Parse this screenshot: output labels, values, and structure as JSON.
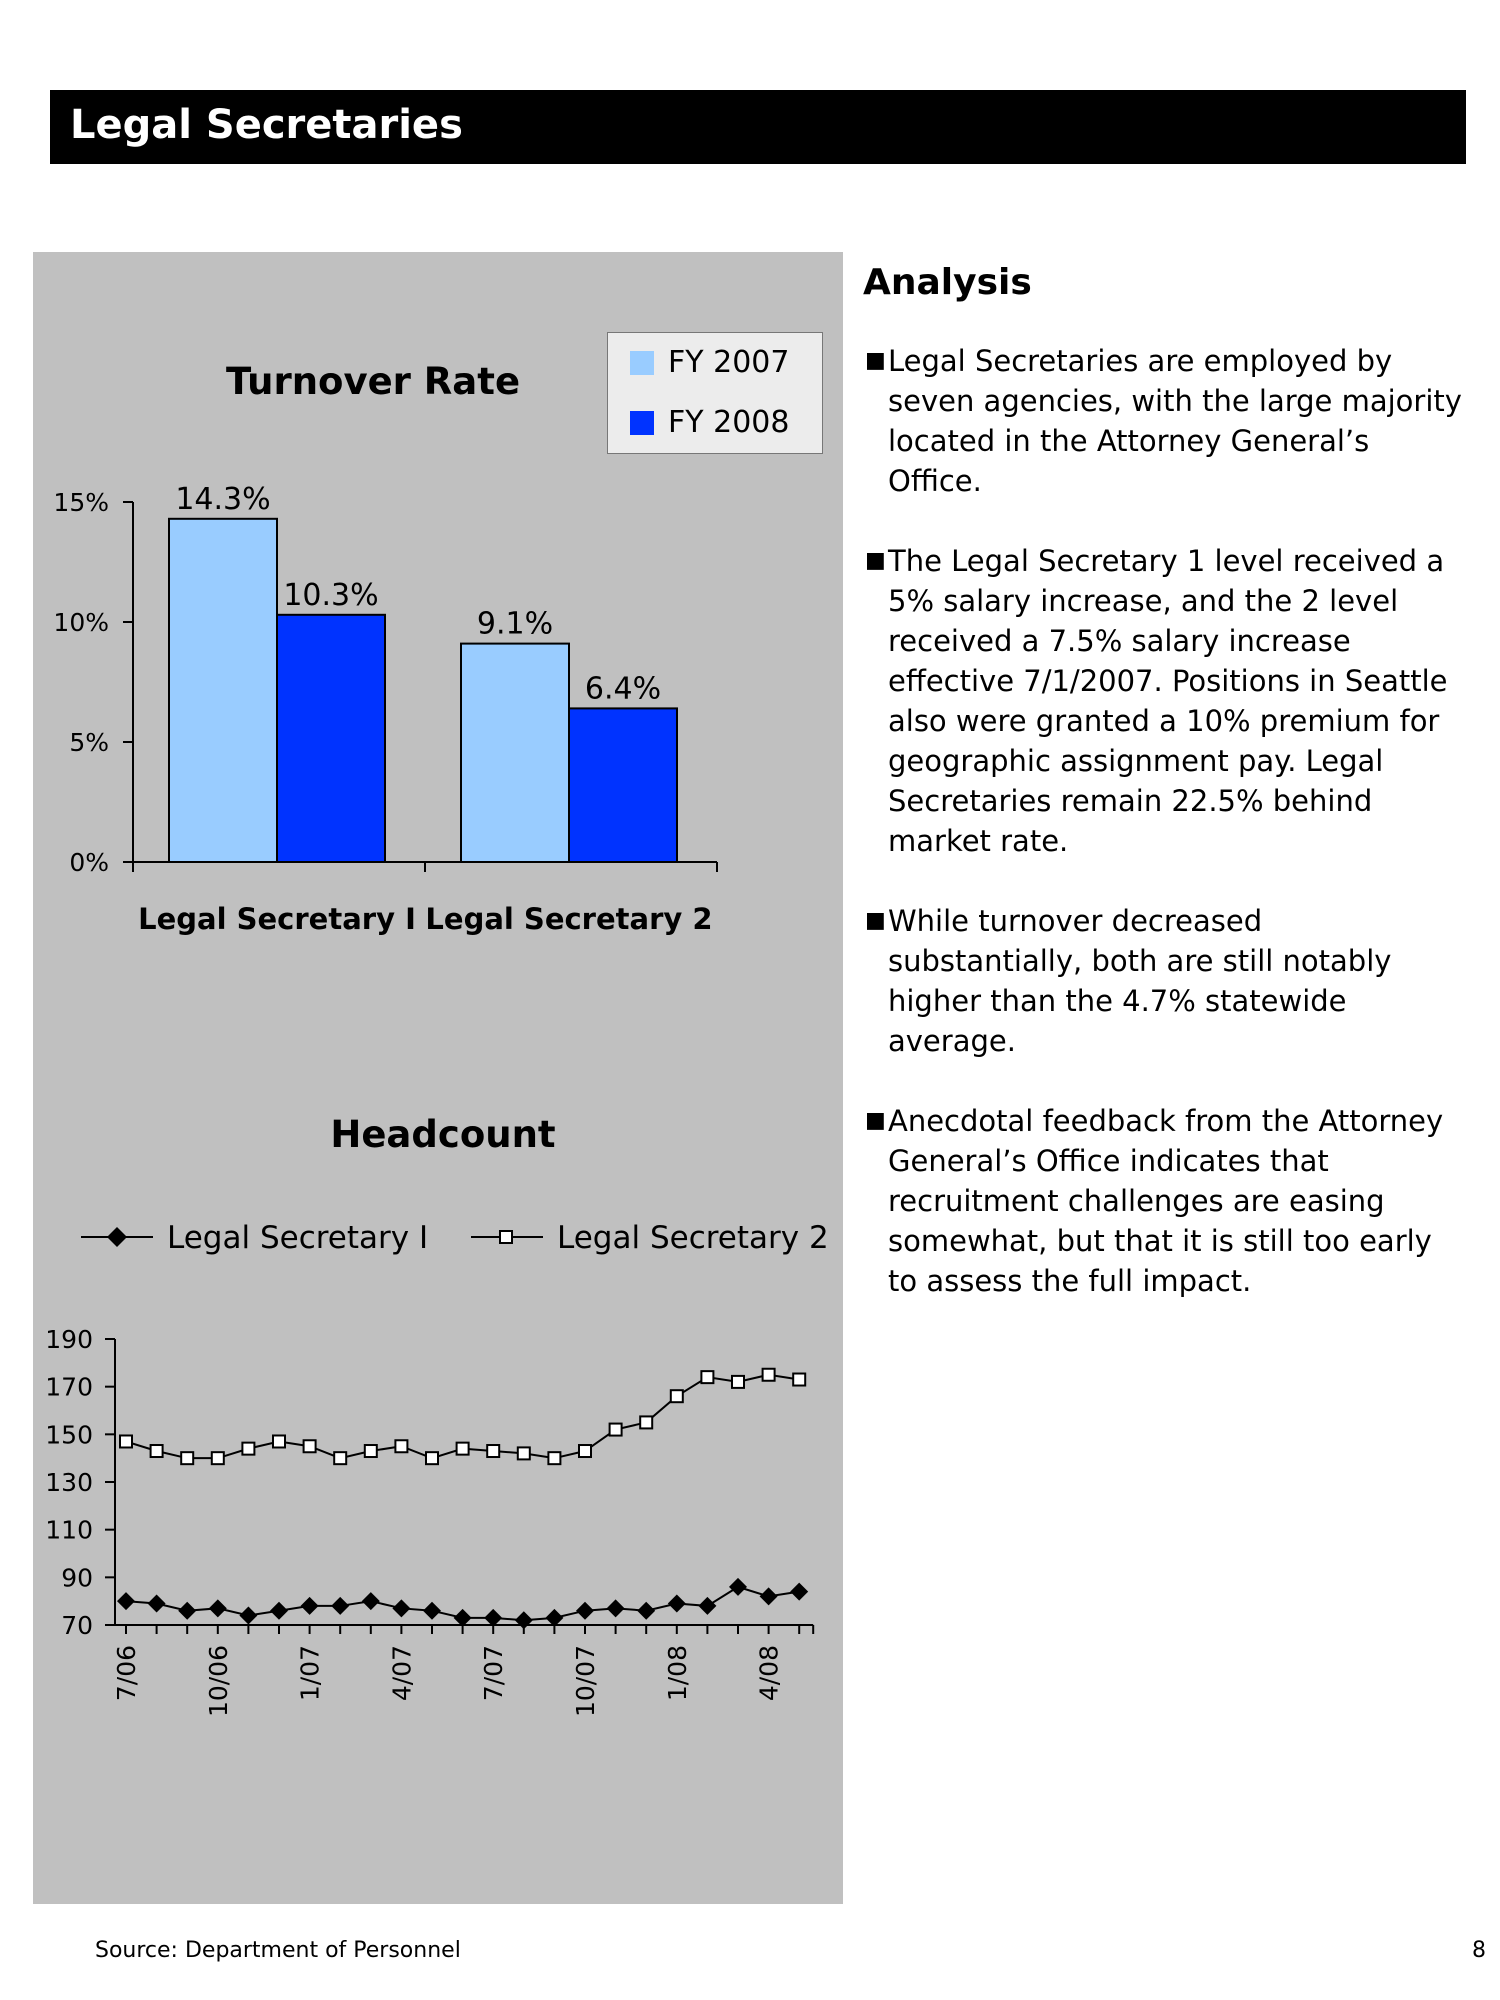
{
  "header": {
    "title": "Legal Secretaries"
  },
  "chart_data": [
    {
      "type": "bar",
      "title": "Turnover Rate",
      "categories": [
        "Legal Secretary I",
        "Legal Secretary 2"
      ],
      "series": [
        {
          "name": "FY 2007",
          "values": [
            14.3,
            9.1
          ],
          "labels": [
            "14.3%",
            "9.1%"
          ],
          "color": "#99ccff"
        },
        {
          "name": "FY 2008",
          "values": [
            10.3,
            6.4
          ],
          "labels": [
            "10.3%",
            "6.4%"
          ],
          "color": "#0033ff"
        }
      ],
      "yticks": [
        "0%",
        "5%",
        "10%",
        "15%"
      ],
      "ylim": [
        0,
        15
      ],
      "xlabel": "",
      "ylabel": "",
      "legend": "top-right",
      "grid": false
    },
    {
      "type": "line",
      "title": "Headcount",
      "x": [
        "7/06",
        "8/06",
        "9/06",
        "10/06",
        "11/06",
        "12/06",
        "1/07",
        "2/07",
        "3/07",
        "4/07",
        "5/07",
        "6/07",
        "7/07",
        "8/07",
        "9/07",
        "10/07",
        "11/07",
        "12/07",
        "1/08",
        "2/08",
        "3/08",
        "4/08",
        "5/08"
      ],
      "xtick_labels": [
        "7/06",
        "10/06",
        "1/07",
        "4/07",
        "7/07",
        "10/07",
        "1/08",
        "4/08"
      ],
      "series": [
        {
          "name": "Legal Secretary I",
          "marker": "filled-diamond",
          "values": [
            80,
            79,
            76,
            77,
            74,
            76,
            78,
            78,
            80,
            77,
            76,
            73,
            73,
            72,
            73,
            76,
            77,
            76,
            79,
            78,
            86,
            82,
            84
          ]
        },
        {
          "name": "Legal Secretary 2",
          "marker": "open-square",
          "values": [
            147,
            143,
            140,
            140,
            144,
            147,
            145,
            140,
            143,
            145,
            140,
            144,
            143,
            142,
            140,
            143,
            152,
            155,
            166,
            174,
            172,
            175,
            173
          ]
        }
      ],
      "yticks": [
        "70",
        "90",
        "110",
        "130",
        "150",
        "170",
        "190"
      ],
      "ylim": [
        70,
        190
      ],
      "legend": "top",
      "grid": false
    }
  ],
  "analysis": {
    "heading": "Analysis",
    "bullets": [
      "Legal Secretaries are employed by seven agencies, with the large majority located in the Attorney General’s Office.",
      "The Legal Secretary 1 level received a 5% salary increase, and the 2 level received a 7.5% salary increase effective 7/1/2007.  Positions in Seattle also were granted a 10% premium for geographic assignment pay.  Legal Secretaries remain 22.5% behind market rate.",
      "While turnover decreased substantially, both are still notably higher than the 4.7% statewide average.",
      "Anecdotal feedback from the Attorney General’s Office indicates that recruitment challenges are easing somewhat, but that it is still too early to assess the full impact."
    ]
  },
  "footer": {
    "source": "Source:  Department of Personnel",
    "page_number": "8"
  }
}
